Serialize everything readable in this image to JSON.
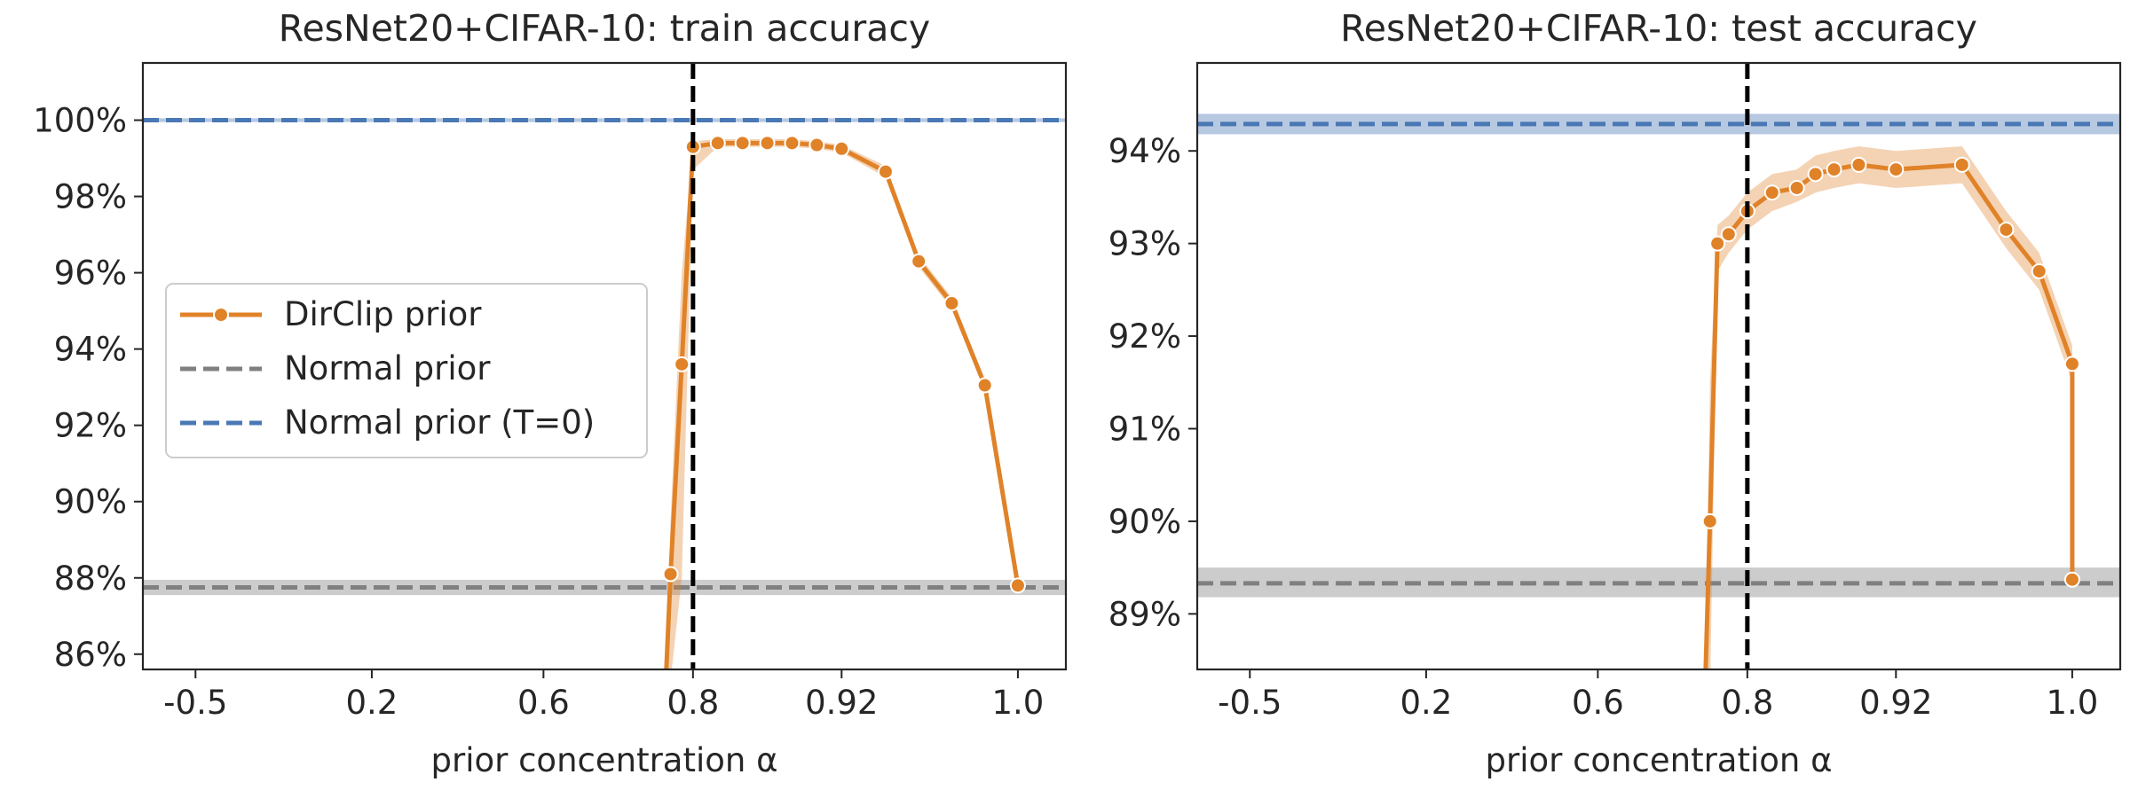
{
  "colors": {
    "dirclip": "#E08228",
    "normal": "#808080",
    "normal_t0": "#4A78B5",
    "threshold": "#000000"
  },
  "chart_data": [
    {
      "type": "line",
      "title": "ResNet20+CIFAR-10: train accuracy",
      "xlabel": "prior concentration α",
      "ylabel": "",
      "x_categories": [
        "-0.5",
        "0.2",
        "0.6",
        "0.8",
        "0.92",
        "1.0"
      ],
      "ylim": [
        85.6,
        101.5
      ],
      "yticks": [
        "86%",
        "88%",
        "90%",
        "92%",
        "94%",
        "96%",
        "98%",
        "100%"
      ],
      "yticks_values": [
        86,
        88,
        90,
        92,
        94,
        96,
        98,
        100
      ],
      "grid": false,
      "vertical_line_x": 0.8,
      "legend": {
        "placement": "center-left",
        "entries": [
          "DirClip prior",
          "Normal prior",
          "Normal prior (T=0)"
        ]
      },
      "series": [
        {
          "name": "DirClip prior",
          "type": "line-markers",
          "x": [
            0.77,
            0.785,
            0.8,
            0.82,
            0.84,
            0.86,
            0.88,
            0.9,
            0.92,
            0.94,
            0.955,
            0.97,
            0.985,
            1.0
          ],
          "y": [
            88.1,
            93.6,
            99.3,
            99.4,
            99.4,
            99.4,
            99.4,
            99.35,
            99.25,
            98.65,
            96.3,
            95.2,
            93.05,
            87.8
          ],
          "low": [
            85.3,
            88.0,
            98.7,
            99.3,
            99.3,
            99.3,
            99.3,
            99.25,
            99.15,
            98.5,
            96.15,
            95.05,
            92.9,
            87.65
          ],
          "high": [
            89.5,
            96.0,
            99.45,
            99.5,
            99.5,
            99.5,
            99.5,
            99.45,
            99.35,
            98.8,
            96.45,
            95.35,
            93.2,
            87.95
          ]
        },
        {
          "name": "Normal prior",
          "type": "hline",
          "y": 87.75,
          "low": 87.55,
          "high": 87.95
        },
        {
          "name": "Normal prior (T=0)",
          "type": "hline",
          "y": 100.0,
          "low": 99.95,
          "high": 100.05
        }
      ]
    },
    {
      "type": "line",
      "title": "ResNet20+CIFAR-10: test accuracy",
      "xlabel": "prior concentration α",
      "ylabel": "",
      "x_categories": [
        "-0.5",
        "0.2",
        "0.6",
        "0.8",
        "0.92",
        "1.0"
      ],
      "ylim": [
        88.4,
        94.95
      ],
      "yticks": [
        "89%",
        "90%",
        "91%",
        "92%",
        "93%",
        "94%"
      ],
      "yticks_values": [
        89,
        90,
        91,
        92,
        93,
        94
      ],
      "grid": false,
      "vertical_line_x": 0.8,
      "series": [
        {
          "name": "DirClip prior",
          "type": "line-markers",
          "x": [
            0.75,
            0.76,
            0.775,
            0.8,
            0.82,
            0.84,
            0.855,
            0.87,
            0.89,
            0.92,
            0.95,
            0.97,
            0.985,
            1.0
          ],
          "y": [
            90.0,
            93.0,
            93.1,
            93.35,
            93.55,
            93.6,
            93.75,
            93.8,
            93.85,
            93.8,
            93.85,
            93.15,
            92.7,
            91.7
          ],
          "low": [
            88.1,
            92.7,
            92.9,
            93.15,
            93.35,
            93.45,
            93.55,
            93.6,
            93.65,
            93.6,
            93.65,
            92.95,
            92.5,
            91.5
          ],
          "high": [
            91.5,
            93.2,
            93.3,
            93.55,
            93.75,
            93.8,
            93.95,
            94.0,
            94.05,
            94.0,
            94.05,
            93.35,
            92.9,
            91.9
          ]
        },
        {
          "name": "Normal prior",
          "type": "hline",
          "y": 89.33,
          "low": 89.18,
          "high": 89.5
        },
        {
          "name": "Normal prior (T=0)",
          "type": "hline",
          "y": 94.29,
          "low": 94.18,
          "high": 94.4
        }
      ],
      "tail_point": {
        "x": 1.0,
        "y": 89.37
      }
    }
  ]
}
